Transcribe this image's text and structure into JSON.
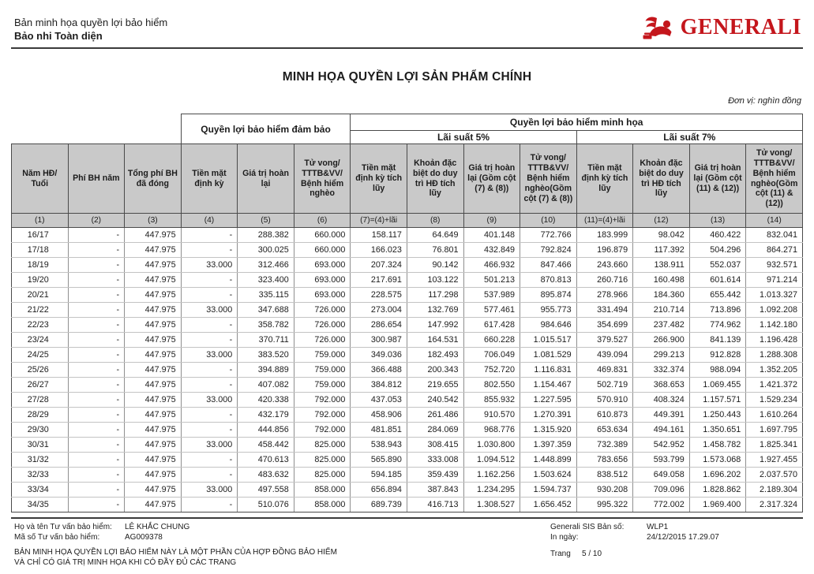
{
  "colors": {
    "brand_red": "#c4161c",
    "header_gray": "#c9c9c9"
  },
  "header": {
    "doc_type": "Bản minh họa quyền lợi bảo hiểm",
    "product": "Bảo nhi Toàn diện",
    "brand": "GENERALI"
  },
  "title": "MINH HỌA QUYỀN LỢI SẢN PHẨM CHÍNH",
  "unit_note": "Đơn vị: nghìn đồng",
  "table": {
    "groups": {
      "guaranteed": "Quyền lợi bảo hiểm đảm bảo",
      "illustrated": "Quyền lợi bảo hiểm minh họa",
      "rate5": "Lãi suất 5%",
      "rate7": "Lãi suất 7%"
    },
    "columns": [
      "Năm HĐ/ Tuổi",
      "Phí BH năm",
      "Tổng phí BH đã đóng",
      "Tiền mặt định kỳ",
      "Giá trị hoàn lại",
      "Tử vong/ TTTB&VV/ Bệnh hiểm nghèo",
      "Tiền mặt định kỳ tích lũy",
      "Khoản đặc biệt do duy trì HĐ tích lũy",
      "Giá trị hoàn lại (Gồm cột (7) & (8))",
      "Tử vong/ TTTB&VV/ Bệnh hiểm nghèo(Gồm cột (7) & (8))",
      "Tiền mặt định kỳ tích lũy",
      "Khoản đặc biệt do duy trì HĐ tích lũy",
      "Giá trị hoàn lại (Gồm cột (11) & (12))",
      "Tử vong/ TTTB&VV/ Bệnh hiểm nghèo(Gồm cột (11) & (12))"
    ],
    "column_numbers": [
      "(1)",
      "(2)",
      "(3)",
      "(4)",
      "(5)",
      "(6)",
      "(7)=(4)+lãi",
      "(8)",
      "(9)",
      "(10)",
      "(11)=(4)+lãi",
      "(12)",
      "(13)",
      "(14)"
    ],
    "rows": [
      [
        "16/17",
        "-",
        "447.975",
        "-",
        "288.382",
        "660.000",
        "158.117",
        "64.649",
        "401.148",
        "772.766",
        "183.999",
        "98.042",
        "460.422",
        "832.041"
      ],
      [
        "17/18",
        "-",
        "447.975",
        "-",
        "300.025",
        "660.000",
        "166.023",
        "76.801",
        "432.849",
        "792.824",
        "196.879",
        "117.392",
        "504.296",
        "864.271"
      ],
      [
        "18/19",
        "-",
        "447.975",
        "33.000",
        "312.466",
        "693.000",
        "207.324",
        "90.142",
        "466.932",
        "847.466",
        "243.660",
        "138.911",
        "552.037",
        "932.571"
      ],
      [
        "19/20",
        "-",
        "447.975",
        "-",
        "323.400",
        "693.000",
        "217.691",
        "103.122",
        "501.213",
        "870.813",
        "260.716",
        "160.498",
        "601.614",
        "971.214"
      ],
      [
        "20/21",
        "-",
        "447.975",
        "-",
        "335.115",
        "693.000",
        "228.575",
        "117.298",
        "537.989",
        "895.874",
        "278.966",
        "184.360",
        "655.442",
        "1.013.327"
      ],
      [
        "21/22",
        "-",
        "447.975",
        "33.000",
        "347.688",
        "726.000",
        "273.004",
        "132.769",
        "577.461",
        "955.773",
        "331.494",
        "210.714",
        "713.896",
        "1.092.208"
      ],
      [
        "22/23",
        "-",
        "447.975",
        "-",
        "358.782",
        "726.000",
        "286.654",
        "147.992",
        "617.428",
        "984.646",
        "354.699",
        "237.482",
        "774.962",
        "1.142.180"
      ],
      [
        "23/24",
        "-",
        "447.975",
        "-",
        "370.711",
        "726.000",
        "300.987",
        "164.531",
        "660.228",
        "1.015.517",
        "379.527",
        "266.900",
        "841.139",
        "1.196.428"
      ],
      [
        "24/25",
        "-",
        "447.975",
        "33.000",
        "383.520",
        "759.000",
        "349.036",
        "182.493",
        "706.049",
        "1.081.529",
        "439.094",
        "299.213",
        "912.828",
        "1.288.308"
      ],
      [
        "25/26",
        "-",
        "447.975",
        "-",
        "394.889",
        "759.000",
        "366.488",
        "200.343",
        "752.720",
        "1.116.831",
        "469.831",
        "332.374",
        "988.094",
        "1.352.205"
      ],
      [
        "26/27",
        "-",
        "447.975",
        "-",
        "407.082",
        "759.000",
        "384.812",
        "219.655",
        "802.550",
        "1.154.467",
        "502.719",
        "368.653",
        "1.069.455",
        "1.421.372"
      ],
      [
        "27/28",
        "-",
        "447.975",
        "33.000",
        "420.338",
        "792.000",
        "437.053",
        "240.542",
        "855.932",
        "1.227.595",
        "570.910",
        "408.324",
        "1.157.571",
        "1.529.234"
      ],
      [
        "28/29",
        "-",
        "447.975",
        "-",
        "432.179",
        "792.000",
        "458.906",
        "261.486",
        "910.570",
        "1.270.391",
        "610.873",
        "449.391",
        "1.250.443",
        "1.610.264"
      ],
      [
        "29/30",
        "-",
        "447.975",
        "-",
        "444.856",
        "792.000",
        "481.851",
        "284.069",
        "968.776",
        "1.315.920",
        "653.634",
        "494.161",
        "1.350.651",
        "1.697.795"
      ],
      [
        "30/31",
        "-",
        "447.975",
        "33.000",
        "458.442",
        "825.000",
        "538.943",
        "308.415",
        "1.030.800",
        "1.397.359",
        "732.389",
        "542.952",
        "1.458.782",
        "1.825.341"
      ],
      [
        "31/32",
        "-",
        "447.975",
        "-",
        "470.613",
        "825.000",
        "565.890",
        "333.008",
        "1.094.512",
        "1.448.899",
        "783.656",
        "593.799",
        "1.573.068",
        "1.927.455"
      ],
      [
        "32/33",
        "-",
        "447.975",
        "-",
        "483.632",
        "825.000",
        "594.185",
        "359.439",
        "1.162.256",
        "1.503.624",
        "838.512",
        "649.058",
        "1.696.202",
        "2.037.570"
      ],
      [
        "33/34",
        "-",
        "447.975",
        "33.000",
        "497.558",
        "858.000",
        "656.894",
        "387.843",
        "1.234.295",
        "1.594.737",
        "930.208",
        "709.096",
        "1.828.862",
        "2.189.304"
      ],
      [
        "34/35",
        "-",
        "447.975",
        "-",
        "510.076",
        "858.000",
        "689.739",
        "416.713",
        "1.308.527",
        "1.656.452",
        "995.322",
        "772.002",
        "1.969.400",
        "2.317.324"
      ]
    ]
  },
  "footer": {
    "advisor_name_label": "Họ và tên Tư vấn bảo hiểm:",
    "advisor_name": "LÊ KHẮC CHUNG",
    "advisor_code_label": "Mã số Tư vấn bảo hiểm:",
    "advisor_code": "AG009378",
    "sis_label": "Generali SIS Bản số:",
    "sis_value": "WLP1",
    "print_label": "In ngày:",
    "print_value": "24/12/2015 17.29.07",
    "disclaimer_line1": "BẢN MINH HỌA QUYỀN LỢI BẢO HIỂM NÀY LÀ MỘT PHẦN CỦA HỢP ĐỒNG BẢO HIỂM",
    "disclaimer_line2": "VÀ CHỈ CÓ GIÁ TRỊ MINH HỌA KHI CÓ ĐẦY ĐỦ CÁC TRANG",
    "page_label": "Trang",
    "page_value": "5 / 10"
  }
}
